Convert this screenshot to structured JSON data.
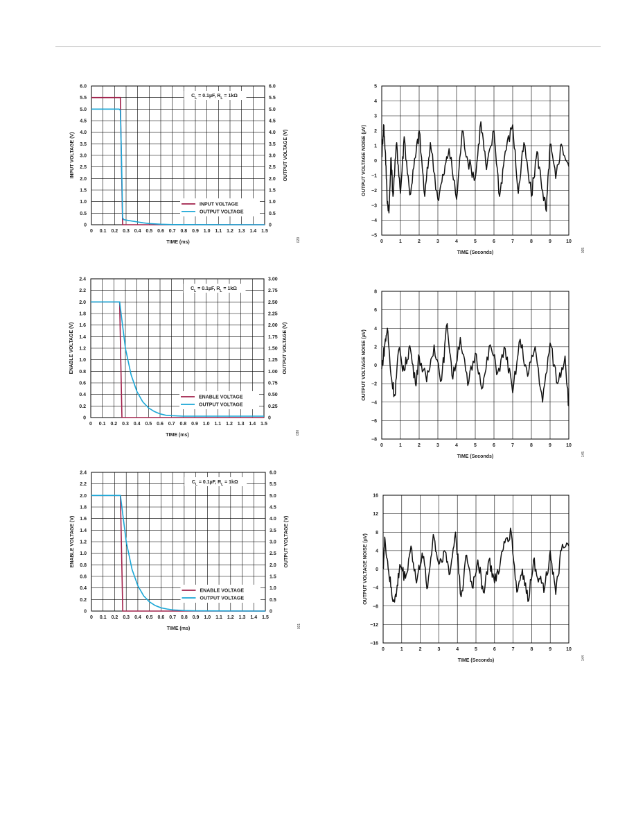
{
  "chart_data": [
    {
      "type": "line",
      "xlabel": "TIME (ms)",
      "ylabel": "INPUT VOLTAGE (V)",
      "y2label": "OUTPUT VOLTAGE (V)",
      "xlim": [
        0,
        1.5
      ],
      "ylim": [
        0,
        6.0
      ],
      "y2lim": [
        0,
        6.0
      ],
      "xticks": [
        "0",
        "0.1",
        "0.2",
        "0.3",
        "0.4",
        "0.5",
        "0.6",
        "0.7",
        "0.8",
        "0.9",
        "1.0",
        "1.1",
        "1.2",
        "1.3",
        "1.4",
        "1.5"
      ],
      "yticks": [
        "0",
        "0.5",
        "1.0",
        "1.5",
        "2.0",
        "2.5",
        "3.0",
        "3.5",
        "4.0",
        "4.5",
        "5.0",
        "5.5",
        "6.0"
      ],
      "y2ticks": [
        "0",
        "0.5",
        "1.0",
        "1.5",
        "2.0",
        "2.5",
        "3.0",
        "3.5",
        "4.0",
        "4.5",
        "5.0",
        "5.5",
        "6.0"
      ],
      "annotation": "C_L = 0.1µF, R_L = 1kΩ",
      "legend": "lower-right",
      "figure_code": "029",
      "series": [
        {
          "name": "INPUT VOLTAGE",
          "color": "#a0204a",
          "axis": "left",
          "x": [
            0,
            0.25,
            0.26,
            0.27,
            1.5
          ],
          "y": [
            5.5,
            5.5,
            2.6,
            0,
            0
          ]
        },
        {
          "name": "OUTPUT VOLTAGE",
          "color": "#1aa6d6",
          "axis": "right",
          "x": [
            0,
            0.24,
            0.25,
            0.26,
            0.27,
            0.28,
            0.3,
            0.35,
            0.4,
            0.45,
            0.5,
            0.6,
            0.7,
            1.5
          ],
          "y": [
            5.0,
            5.0,
            4.95,
            3.0,
            0.3,
            0.22,
            0.2,
            0.16,
            0.12,
            0.08,
            0.05,
            0.02,
            0.005,
            0
          ]
        }
      ]
    },
    {
      "type": "noise",
      "xlabel": "TIME (Seconds)",
      "ylabel": "OUTPUT VOLTAGE NOISE (µV)",
      "xlim": [
        0,
        10
      ],
      "ylim": [
        -5,
        5
      ],
      "xticks": [
        "0",
        "1",
        "2",
        "3",
        "4",
        "5",
        "6",
        "7",
        "8",
        "9",
        "10"
      ],
      "yticks": [
        "−5",
        "−4",
        "−3",
        "−2",
        "−1",
        "0",
        "1",
        "2",
        "3",
        "4",
        "5"
      ],
      "figure_code": "035",
      "series": [
        {
          "name": "",
          "color": "#111111",
          "x": [
            0,
            0.1,
            0.2,
            0.3,
            0.4,
            0.5,
            0.6,
            0.8,
            1.0,
            1.2,
            1.5,
            1.8,
            2.0,
            2.3,
            2.6,
            3.0,
            3.3,
            3.6,
            4.0,
            4.3,
            4.6,
            5.0,
            5.3,
            5.6,
            6.0,
            6.3,
            6.6,
            7.0,
            7.3,
            7.6,
            8.0,
            8.3,
            8.6,
            8.8,
            9.0,
            9.3,
            9.6,
            10.0
          ],
          "y": [
            0.3,
            2.4,
            0.5,
            -2.9,
            -3.1,
            0.2,
            -2.4,
            1.2,
            -2.2,
            1.6,
            -2.3,
            0.2,
            2.0,
            -2.4,
            1.2,
            -2.6,
            -1.0,
            0.8,
            -2.6,
            2.0,
            0,
            -1.2,
            2.6,
            -0.6,
            2.0,
            -2.4,
            0.6,
            2.4,
            -2.2,
            1.2,
            -2.4,
            0.6,
            -2.0,
            -3.4,
            1.1,
            -1.2,
            1.1,
            -0.4
          ]
        }
      ]
    },
    {
      "type": "line",
      "xlabel": "TIME (ms)",
      "ylabel": "ENABLE VOLTAGE (V)",
      "y2label": "OUTPUT VOLTAGE (V)",
      "xlim": [
        0,
        1.5
      ],
      "ylim": [
        0,
        2.4
      ],
      "y2lim": [
        0,
        3.0
      ],
      "xticks": [
        "0",
        "0.1",
        "0.2",
        "0.3",
        "0.4",
        "0.5",
        "0.6",
        "0.7",
        "0.8",
        "0.9",
        "1.0",
        "1.1",
        "1.2",
        "1.3",
        "1.4",
        "1.5"
      ],
      "yticks": [
        "0",
        "0.2",
        "0.4",
        "0.6",
        "0.8",
        "1.0",
        "1.2",
        "1.4",
        "1.6",
        "1.8",
        "2.0",
        "2.2",
        "2.4"
      ],
      "y2ticks": [
        "0",
        "0.25",
        "0.50",
        "0.75",
        "1.00",
        "1.25",
        "1.50",
        "1.75",
        "2.00",
        "2.25",
        "2.50",
        "2.75",
        "3.00"
      ],
      "annotation": "C_L = 0.1µF, R_L = 1kΩ",
      "legend": "lower-right",
      "figure_code": "030",
      "series": [
        {
          "name": "ENABLE VOLTAGE",
          "color": "#a0204a",
          "axis": "left",
          "x": [
            0,
            0.25,
            0.26,
            0.27,
            1.5
          ],
          "y": [
            2.0,
            2.0,
            1.0,
            0,
            0
          ]
        },
        {
          "name": "OUTPUT VOLTAGE",
          "color": "#1aa6d6",
          "axis": "right",
          "x": [
            0,
            0.25,
            0.3,
            0.35,
            0.4,
            0.45,
            0.5,
            0.55,
            0.6,
            0.65,
            0.7,
            0.8,
            0.9,
            1.0,
            1.5
          ],
          "y": [
            2.5,
            2.5,
            1.5,
            0.92,
            0.56,
            0.34,
            0.21,
            0.13,
            0.08,
            0.05,
            0.04,
            0.03,
            0.03,
            0.03,
            0.03
          ]
        }
      ]
    },
    {
      "type": "noise",
      "xlabel": "TIME (Seconds)",
      "ylabel": "OUTPUT VOLTAGE NOISE (µV)",
      "xlim": [
        0,
        10
      ],
      "ylim": [
        -8,
        8
      ],
      "xticks": [
        "0",
        "1",
        "2",
        "3",
        "4",
        "5",
        "6",
        "7",
        "8",
        "9",
        "10"
      ],
      "yticks": [
        "−8",
        "−6",
        "−4",
        "−2",
        "0",
        "2",
        "4",
        "6",
        "8"
      ],
      "figure_code": "145",
      "series": [
        {
          "name": "",
          "color": "#111111",
          "x": [
            0,
            0.15,
            0.3,
            0.5,
            0.7,
            0.9,
            1.2,
            1.5,
            1.8,
            2.0,
            2.4,
            2.8,
            3.2,
            3.5,
            3.8,
            4.2,
            4.6,
            5.0,
            5.4,
            5.8,
            6.2,
            6.6,
            7.0,
            7.4,
            7.8,
            8.2,
            8.6,
            9.0,
            9.4,
            9.8,
            10.0
          ],
          "y": [
            -0.4,
            2.0,
            4.0,
            -1.2,
            -3.3,
            1.6,
            -0.6,
            2.1,
            -2.0,
            1.0,
            -1.8,
            2.2,
            -1.6,
            4.5,
            -1.5,
            3.0,
            -2.2,
            1.3,
            -2.4,
            2.2,
            -0.8,
            1.8,
            -3.0,
            2.8,
            -1.2,
            2.0,
            -4.0,
            2.4,
            -2.0,
            1.0,
            -4.4
          ]
        }
      ]
    },
    {
      "type": "line",
      "xlabel": "TIME (ms)",
      "ylabel": "ENABLE VOLTAGE (V)",
      "y2label": "OUTPUT VOLTAGE (V)",
      "xlim": [
        0,
        1.5
      ],
      "ylim": [
        0,
        2.4
      ],
      "y2lim": [
        0,
        6.0
      ],
      "xticks": [
        "0",
        "0.1",
        "0.2",
        "0.3",
        "0.4",
        "0.5",
        "0.6",
        "0.7",
        "0.8",
        "0.9",
        "1.0",
        "1.1",
        "1.2",
        "1.3",
        "1.4",
        "1.5"
      ],
      "yticks": [
        "0",
        "0.2",
        "0.4",
        "0.6",
        "0.8",
        "1.0",
        "1.2",
        "1.4",
        "1.6",
        "1.8",
        "2.0",
        "2.2",
        "2.4"
      ],
      "y2ticks": [
        "0",
        "0.5",
        "1.0",
        "1.5",
        "2.0",
        "2.5",
        "3.0",
        "3.5",
        "4.0",
        "4.5",
        "5.0",
        "5.5",
        "6.0"
      ],
      "annotation": "C_L = 0.1µF, R_L = 1kΩ",
      "legend": "lower-right",
      "figure_code": "031",
      "series": [
        {
          "name": "ENABLE VOLTAGE",
          "color": "#a0204a",
          "axis": "left",
          "x": [
            0,
            0.25,
            0.26,
            0.27,
            1.5
          ],
          "y": [
            2.0,
            2.0,
            1.0,
            0,
            0
          ]
        },
        {
          "name": "OUTPUT VOLTAGE",
          "color": "#1aa6d6",
          "axis": "right",
          "x": [
            0,
            0.25,
            0.3,
            0.35,
            0.4,
            0.45,
            0.5,
            0.55,
            0.6,
            0.65,
            0.7,
            0.8,
            0.9,
            1.5
          ],
          "y": [
            5.0,
            5.0,
            3.0,
            1.8,
            1.1,
            0.66,
            0.4,
            0.24,
            0.14,
            0.09,
            0.05,
            0.02,
            0.01,
            0
          ]
        }
      ]
    },
    {
      "type": "noise",
      "xlabel": "TIME (Seconds)",
      "ylabel": "OUTPUT VOLTAGE NOISE (µV)",
      "xlim": [
        0,
        10
      ],
      "ylim": [
        -16,
        16
      ],
      "xticks": [
        "0",
        "1",
        "2",
        "3",
        "4",
        "5",
        "6",
        "7",
        "8",
        "9",
        "10"
      ],
      "yticks": [
        "−16",
        "−12",
        "−8",
        "−4",
        "0",
        "4",
        "8",
        "12",
        "16"
      ],
      "figure_code": "144",
      "series": [
        {
          "name": "",
          "color": "#111111",
          "x": [
            0,
            0.1,
            0.3,
            0.5,
            0.7,
            0.9,
            1.2,
            1.5,
            1.8,
            2.1,
            2.4,
            2.7,
            3.0,
            3.3,
            3.6,
            3.9,
            4.2,
            4.5,
            4.8,
            5.1,
            5.4,
            5.7,
            6.0,
            6.3,
            6.6,
            6.9,
            7.2,
            7.5,
            7.8,
            8.1,
            8.4,
            8.7,
            9.0,
            9.3,
            9.6,
            10.0
          ],
          "y": [
            0.5,
            6.5,
            -0.5,
            -6.5,
            -6.0,
            1.0,
            -2.0,
            5.0,
            -3.0,
            3.5,
            -4.0,
            7.5,
            1.0,
            4.0,
            -1.0,
            8.0,
            -6.0,
            3.0,
            -4.0,
            2.0,
            -5.0,
            2.0,
            -3.0,
            1.0,
            6.5,
            8.0,
            -5.0,
            0,
            -7.0,
            2.0,
            -2.0,
            -4.0,
            4.0,
            -5.5,
            4.0,
            5.0
          ]
        }
      ]
    }
  ]
}
